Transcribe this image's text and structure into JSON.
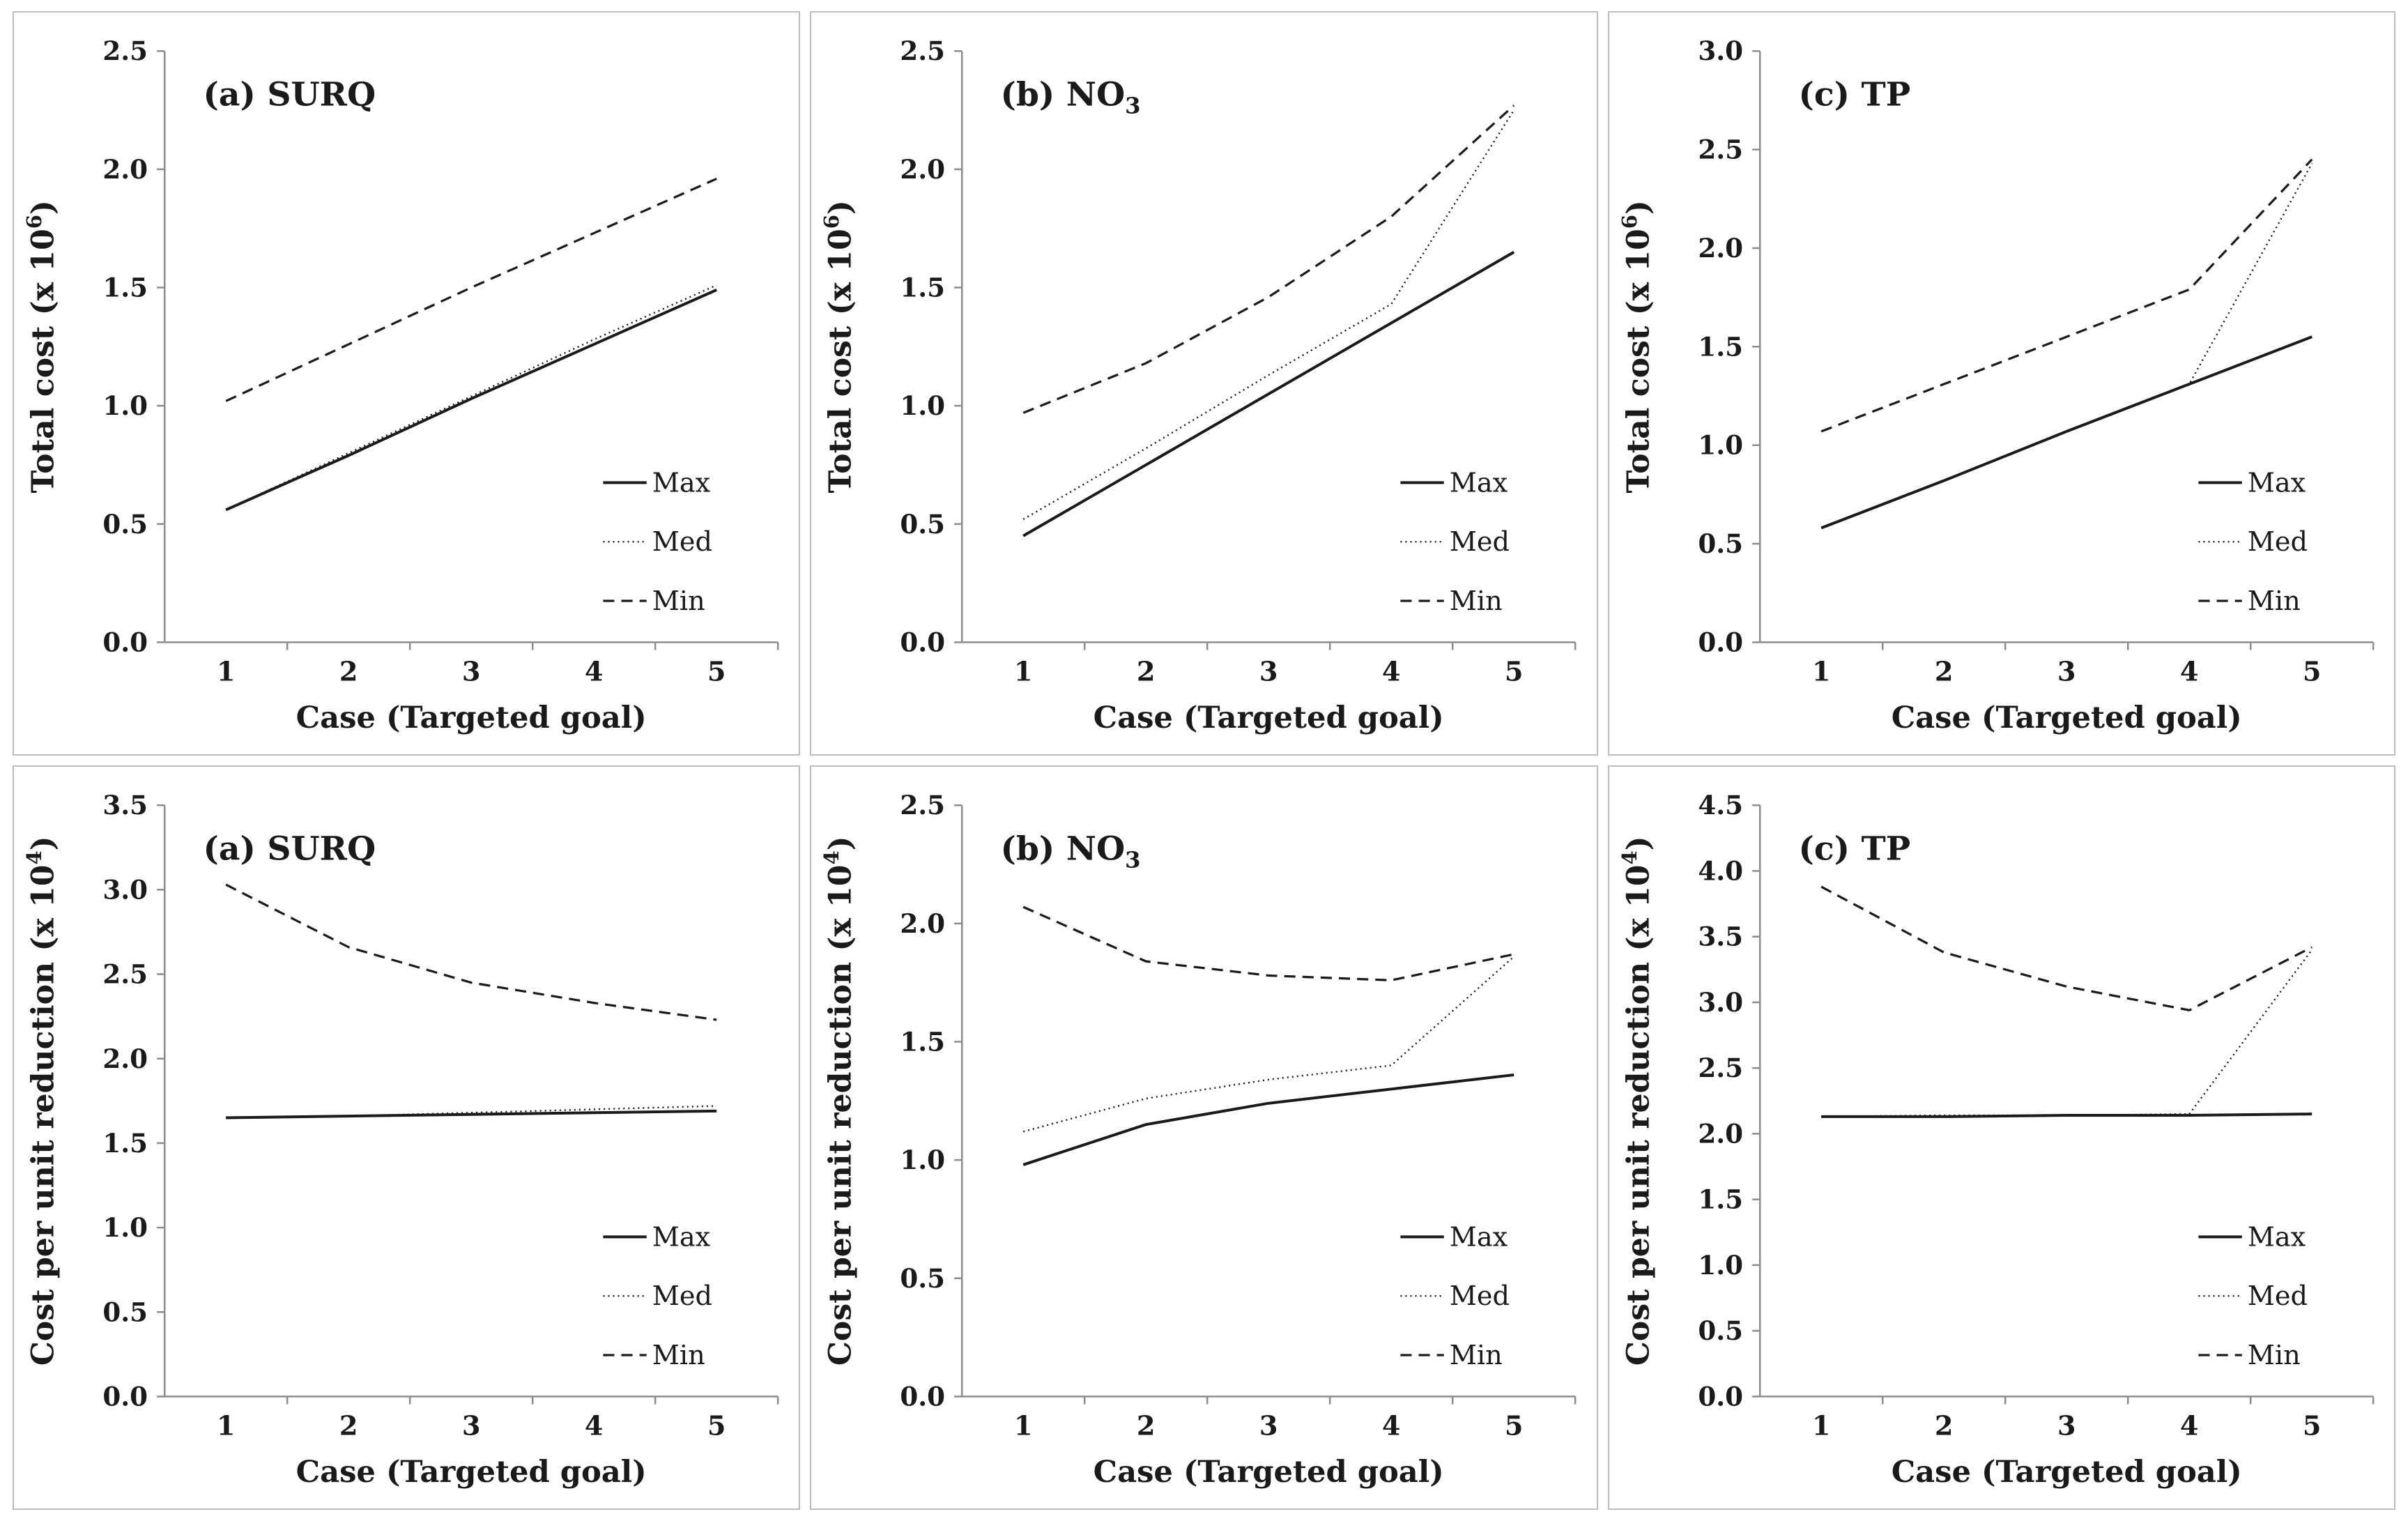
{
  "figure": {
    "description": "Six line charts: total cost and cost per unit reduction versus targeted-goal case for SURQ, NO3 and TP",
    "legend_labels": [
      "Max",
      "Med",
      "Min"
    ],
    "colors": {
      "series_line": "#1a1a1a",
      "axis_line": "#8c8c8c",
      "tick_text": "#1a1a1a",
      "panel_border": "#bdbdbd",
      "background": "#ffffff"
    }
  },
  "chart_data": [
    {
      "type": "line",
      "panel": "top-left",
      "title": {
        "text": "(a) SURQ",
        "sub": ""
      },
      "ylabel": {
        "prefix": "Total cost (x 10",
        "sup": "6",
        "suffix": ")"
      },
      "xlabel": "Case (Targeted goal)",
      "x": [
        1,
        2,
        3,
        4,
        5
      ],
      "xtick_labels": [
        "1",
        "2",
        "3",
        "4",
        "5"
      ],
      "ylim": [
        0,
        2.5
      ],
      "ytick_step": 0.5,
      "grid": false,
      "legend_position": "inside-right-bottom",
      "series": [
        {
          "name": "Max",
          "style": "solid",
          "values": [
            0.56,
            0.79,
            1.03,
            1.26,
            1.49
          ]
        },
        {
          "name": "Med",
          "style": "dotted",
          "values": [
            0.56,
            0.8,
            1.04,
            1.28,
            1.51
          ]
        },
        {
          "name": "Min",
          "style": "dashed",
          "values": [
            1.02,
            1.26,
            1.5,
            1.73,
            1.96
          ]
        }
      ]
    },
    {
      "type": "line",
      "panel": "top-middle",
      "title": {
        "text": "(b) NO",
        "sub": "3"
      },
      "ylabel": {
        "prefix": "Total cost (x 10",
        "sup": "6",
        "suffix": ")"
      },
      "xlabel": "Case (Targeted goal)",
      "x": [
        1,
        2,
        3,
        4,
        5
      ],
      "xtick_labels": [
        "1",
        "2",
        "3",
        "4",
        "5"
      ],
      "ylim": [
        0,
        2.5
      ],
      "ytick_step": 0.5,
      "grid": false,
      "legend_position": "inside-right-bottom",
      "series": [
        {
          "name": "Max",
          "style": "solid",
          "values": [
            0.45,
            0.75,
            1.05,
            1.35,
            1.65
          ]
        },
        {
          "name": "Med",
          "style": "dotted",
          "values": [
            0.52,
            0.82,
            1.13,
            1.43,
            2.25
          ]
        },
        {
          "name": "Min",
          "style": "dashed",
          "values": [
            0.97,
            1.18,
            1.46,
            1.8,
            2.27
          ]
        }
      ]
    },
    {
      "type": "line",
      "panel": "top-right",
      "title": {
        "text": "(c) TP",
        "sub": ""
      },
      "ylabel": {
        "prefix": "Total cost (x 10",
        "sup": "6",
        "suffix": ")"
      },
      "xlabel": "Case (Targeted goal)",
      "x": [
        1,
        2,
        3,
        4,
        5
      ],
      "xtick_labels": [
        "1",
        "2",
        "3",
        "4",
        "5"
      ],
      "ylim": [
        0,
        3.0
      ],
      "ytick_step": 0.5,
      "grid": false,
      "legend_position": "inside-right-bottom",
      "series": [
        {
          "name": "Max",
          "style": "solid",
          "values": [
            0.58,
            0.82,
            1.07,
            1.31,
            1.55
          ]
        },
        {
          "name": "Med",
          "style": "dotted",
          "values": [
            0.58,
            0.82,
            1.07,
            1.31,
            2.43
          ]
        },
        {
          "name": "Min",
          "style": "dashed",
          "values": [
            1.07,
            1.31,
            1.55,
            1.79,
            2.45
          ]
        }
      ]
    },
    {
      "type": "line",
      "panel": "bottom-left",
      "title": {
        "text": "(a) SURQ",
        "sub": ""
      },
      "ylabel": {
        "prefix": "Cost per unit reduction (x 10",
        "sup": "4",
        "suffix": ")"
      },
      "xlabel": "Case (Targeted goal)",
      "x": [
        1,
        2,
        3,
        4,
        5
      ],
      "xtick_labels": [
        "1",
        "2",
        "3",
        "4",
        "5"
      ],
      "ylim": [
        0,
        3.5
      ],
      "ytick_step": 0.5,
      "grid": false,
      "legend_position": "inside-right-bottom",
      "series": [
        {
          "name": "Max",
          "style": "solid",
          "values": [
            1.65,
            1.66,
            1.67,
            1.68,
            1.69
          ]
        },
        {
          "name": "Med",
          "style": "dotted",
          "values": [
            1.65,
            1.66,
            1.68,
            1.7,
            1.72
          ]
        },
        {
          "name": "Min",
          "style": "dashed",
          "values": [
            3.03,
            2.66,
            2.45,
            2.33,
            2.23
          ]
        }
      ]
    },
    {
      "type": "line",
      "panel": "bottom-middle",
      "title": {
        "text": "(b) NO",
        "sub": "3"
      },
      "ylabel": {
        "prefix": "Cost per unit reduction (x 10",
        "sup": "4",
        "suffix": ")"
      },
      "xlabel": "Case (Targeted goal)",
      "x": [
        1,
        2,
        3,
        4,
        5
      ],
      "xtick_labels": [
        "1",
        "2",
        "3",
        "4",
        "5"
      ],
      "ylim": [
        0,
        2.5
      ],
      "ytick_step": 0.5,
      "grid": false,
      "legend_position": "inside-right-bottom",
      "series": [
        {
          "name": "Max",
          "style": "solid",
          "values": [
            0.98,
            1.15,
            1.24,
            1.3,
            1.36
          ]
        },
        {
          "name": "Med",
          "style": "dotted",
          "values": [
            1.12,
            1.26,
            1.34,
            1.4,
            1.86
          ]
        },
        {
          "name": "Min",
          "style": "dashed",
          "values": [
            2.07,
            1.84,
            1.78,
            1.76,
            1.87
          ]
        }
      ]
    },
    {
      "type": "line",
      "panel": "bottom-right",
      "title": {
        "text": "(c) TP",
        "sub": ""
      },
      "ylabel": {
        "prefix": "Cost per unit reduction (x 10",
        "sup": "4",
        "suffix": ")"
      },
      "xlabel": "Case (Targeted goal)",
      "x": [
        1,
        2,
        3,
        4,
        5
      ],
      "xtick_labels": [
        "1",
        "2",
        "3",
        "4",
        "5"
      ],
      "ylim": [
        0,
        4.5
      ],
      "ytick_step": 0.5,
      "grid": false,
      "legend_position": "inside-right-bottom",
      "series": [
        {
          "name": "Max",
          "style": "solid",
          "values": [
            2.13,
            2.13,
            2.14,
            2.14,
            2.15
          ]
        },
        {
          "name": "Med",
          "style": "dotted",
          "values": [
            2.13,
            2.14,
            2.14,
            2.15,
            3.4
          ]
        },
        {
          "name": "Min",
          "style": "dashed",
          "values": [
            3.88,
            3.38,
            3.12,
            2.94,
            3.42
          ]
        }
      ]
    }
  ]
}
